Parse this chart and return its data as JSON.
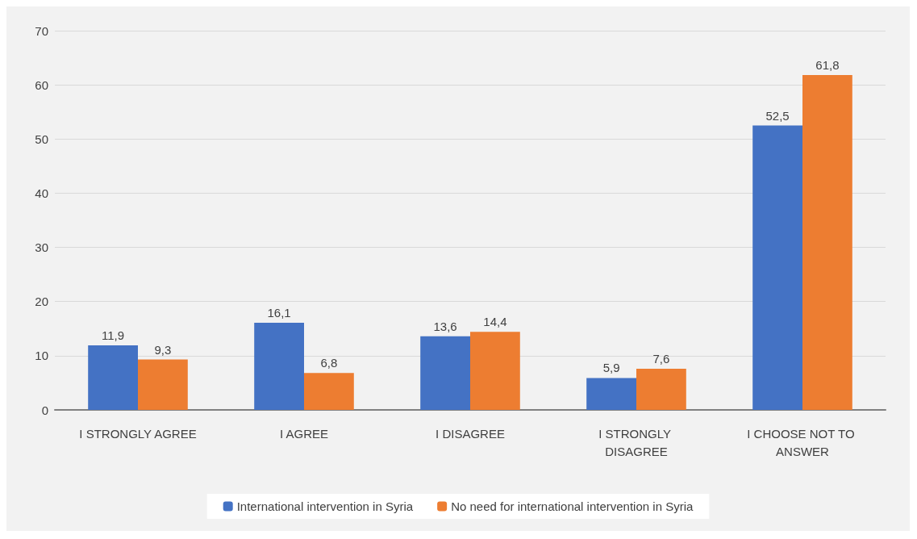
{
  "chart_data": {
    "type": "bar",
    "categories": [
      "I STRONGLY AGREE",
      "I AGREE",
      "I DISAGREE",
      "I STRONGLY DISAGREE",
      "I CHOOSE NOT TO ANSWER"
    ],
    "series": [
      {
        "name": "International intervention in Syria",
        "color": "#4472c4",
        "values": [
          11.9,
          16.1,
          13.6,
          5.9,
          52.5
        ],
        "value_labels": [
          "11,9",
          "16,1",
          "13,6",
          "5,9",
          "52,5"
        ]
      },
      {
        "name": "No need for international intervention in Syria",
        "color": "#ed7d31",
        "values": [
          9.3,
          6.8,
          14.4,
          7.6,
          61.8
        ],
        "value_labels": [
          "9,3",
          "6,8",
          "14,4",
          "7,6",
          "61,8"
        ]
      }
    ],
    "ylim": [
      0,
      70
    ],
    "yticks": [
      0,
      10,
      20,
      30,
      40,
      50,
      60,
      70
    ],
    "grid": "y",
    "legend": "bottom"
  }
}
